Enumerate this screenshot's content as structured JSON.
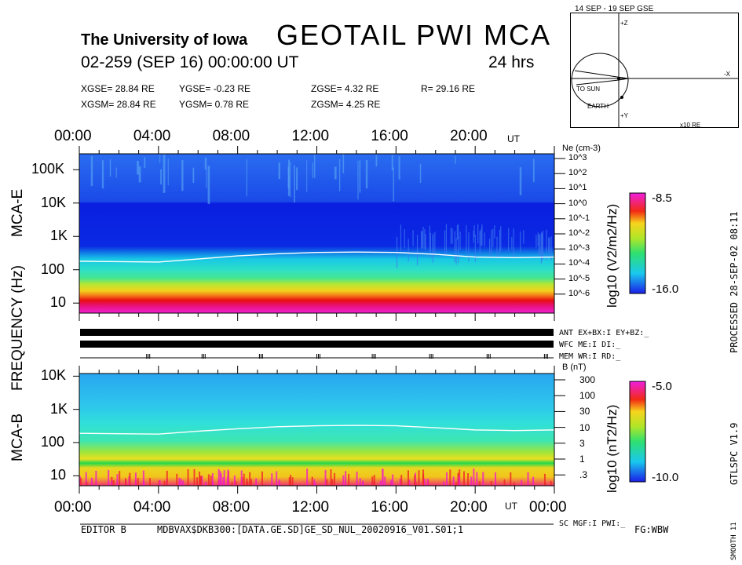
{
  "header": {
    "university": "The University of Iowa",
    "title": "GEOTAIL PWI MCA",
    "date_line": "02-259 (SEP 16) 00:00:00 UT",
    "duration": "24 hrs"
  },
  "coords": {
    "xgse": "XGSE=  28.84 RE",
    "ygse": "YGSE=  -0.23 RE",
    "zgse": "ZGSE=   4.32 RE",
    "r": "R= 29.16 RE",
    "xgsm": "XGSM=  28.84 RE",
    "ygsm": "YGSM=   0.78 RE",
    "zgsm": "ZGSM=   4.25 RE"
  },
  "orbit": {
    "title": "14 SEP - 19 SEP  GSE",
    "to_sun": "TO SUN",
    "earth": "EARTH",
    "x_unit": "x10 RE",
    "x_label": "-X",
    "z_label": "+Z",
    "y_label": "+Y"
  },
  "time_ticks_top": [
    "00:00",
    "04:00",
    "08:00",
    "12:00",
    "16:00",
    "20:00"
  ],
  "time_ticks_bottom": [
    "00:00",
    "04:00",
    "08:00",
    "12:00",
    "16:00",
    "20:00",
    "00:00"
  ],
  "ut": "UT",
  "mca_e": {
    "label": "MCA-E",
    "freq_ticks": [
      "100K",
      "10K",
      "1K",
      "100",
      "10"
    ],
    "ne_title": "Ne (cm-3)",
    "ne_ticks": [
      "10^3",
      "10^2",
      "10^1",
      "10^0",
      "10^-1",
      "10^-2",
      "10^-3",
      "10^-4",
      "10^-5",
      "10^-6"
    ],
    "colorbar": {
      "max": "-8.5",
      "min": "-16.0",
      "label": "log10 (V2/m2/Hz)"
    }
  },
  "mca_b": {
    "label": "MCA-B",
    "freq_ticks": [
      "10K",
      "1K",
      "100",
      "10"
    ],
    "b_title": "B (nT)",
    "b_ticks": [
      "300",
      "100",
      "30",
      "10",
      "3",
      "1",
      ".3"
    ],
    "colorbar": {
      "max": "-5.0",
      "min": "-10.0",
      "label": "log10 (nT2/Hz)"
    }
  },
  "frequency_axis_label": "FREQUENCY (Hz)",
  "status": {
    "ant": "ANT EX+BX:I  EY+BZ:_",
    "wfc": "WFC ME:I     DI:_",
    "mem": "MEM WR:I     RD:_",
    "sc": "SC MGF:I    PWI:_"
  },
  "footer": {
    "editor": "EDITOR B",
    "file": "MDBVAX$DKB300:[DATA.GE.SD]GE_SD_NUL_20020916_V01.S01;1",
    "fg": "FG:WBW",
    "processed": "PROCESSED 28-SEP-02  08:11",
    "version": "GTLSPC  V1.9",
    "smooth": "SMOOTH 11"
  },
  "chart_data": [
    {
      "type": "heatmap",
      "title": "MCA-E",
      "xlabel": "UT",
      "ylabel": "FREQUENCY (Hz)",
      "x_range": [
        "00:00",
        "24:00"
      ],
      "y_scale": "log",
      "y_range": [
        5,
        300000
      ],
      "colorbar_range": [
        -16.0,
        -8.5
      ],
      "plasma_cutoff_hz": [
        {
          "t": 0,
          "f": 180
        },
        {
          "t": 2,
          "f": 175
        },
        {
          "t": 4,
          "f": 170
        },
        {
          "t": 6,
          "f": 210
        },
        {
          "t": 8,
          "f": 260
        },
        {
          "t": 10,
          "f": 300
        },
        {
          "t": 12,
          "f": 330
        },
        {
          "t": 14,
          "f": 340
        },
        {
          "t": 16,
          "f": 330
        },
        {
          "t": 18,
          "f": 290
        },
        {
          "t": 20,
          "f": 240
        },
        {
          "t": 22,
          "f": 230
        },
        {
          "t": 24,
          "f": 240
        }
      ]
    },
    {
      "type": "heatmap",
      "title": "MCA-B",
      "xlabel": "UT",
      "ylabel": "FREQUENCY (Hz)",
      "x_range": [
        "00:00",
        "24:00"
      ],
      "y_scale": "log",
      "y_range": [
        5,
        12000
      ],
      "colorbar_range": [
        -10.0,
        -5.0
      ],
      "cyclotron_line_hz": [
        {
          "t": 0,
          "f": 190
        },
        {
          "t": 2,
          "f": 185
        },
        {
          "t": 4,
          "f": 180
        },
        {
          "t": 6,
          "f": 220
        },
        {
          "t": 8,
          "f": 260
        },
        {
          "t": 10,
          "f": 300
        },
        {
          "t": 12,
          "f": 320
        },
        {
          "t": 14,
          "f": 330
        },
        {
          "t": 16,
          "f": 320
        },
        {
          "t": 18,
          "f": 280
        },
        {
          "t": 20,
          "f": 240
        },
        {
          "t": 22,
          "f": 230
        },
        {
          "t": 24,
          "f": 240
        }
      ]
    }
  ]
}
